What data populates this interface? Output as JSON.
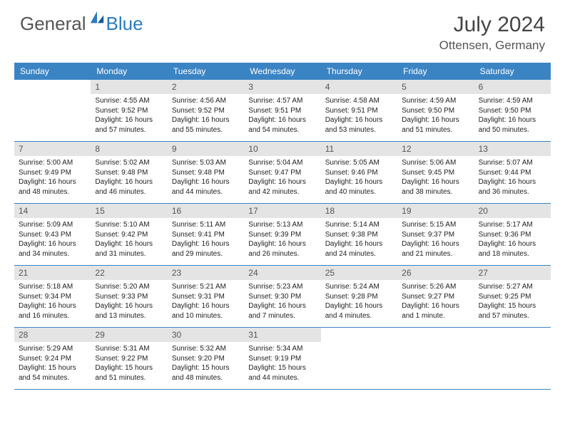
{
  "brand": {
    "part1": "General",
    "part2": "Blue"
  },
  "title": "July 2024",
  "location": "Ottensen, Germany",
  "colors": {
    "header_bg": "#3b84c4",
    "daynum_bg": "#e4e4e4",
    "text_dark": "#222222",
    "text_mid": "#555555",
    "brand_blue": "#2b7bbf"
  },
  "dayNames": [
    "Sunday",
    "Monday",
    "Tuesday",
    "Wednesday",
    "Thursday",
    "Friday",
    "Saturday"
  ],
  "weeks": [
    [
      null,
      {
        "n": "1",
        "sr": "4:55 AM",
        "ss": "9:52 PM",
        "dl": "16 hours and 57 minutes."
      },
      {
        "n": "2",
        "sr": "4:56 AM",
        "ss": "9:52 PM",
        "dl": "16 hours and 55 minutes."
      },
      {
        "n": "3",
        "sr": "4:57 AM",
        "ss": "9:51 PM",
        "dl": "16 hours and 54 minutes."
      },
      {
        "n": "4",
        "sr": "4:58 AM",
        "ss": "9:51 PM",
        "dl": "16 hours and 53 minutes."
      },
      {
        "n": "5",
        "sr": "4:59 AM",
        "ss": "9:50 PM",
        "dl": "16 hours and 51 minutes."
      },
      {
        "n": "6",
        "sr": "4:59 AM",
        "ss": "9:50 PM",
        "dl": "16 hours and 50 minutes."
      }
    ],
    [
      {
        "n": "7",
        "sr": "5:00 AM",
        "ss": "9:49 PM",
        "dl": "16 hours and 48 minutes."
      },
      {
        "n": "8",
        "sr": "5:02 AM",
        "ss": "9:48 PM",
        "dl": "16 hours and 46 minutes."
      },
      {
        "n": "9",
        "sr": "5:03 AM",
        "ss": "9:48 PM",
        "dl": "16 hours and 44 minutes."
      },
      {
        "n": "10",
        "sr": "5:04 AM",
        "ss": "9:47 PM",
        "dl": "16 hours and 42 minutes."
      },
      {
        "n": "11",
        "sr": "5:05 AM",
        "ss": "9:46 PM",
        "dl": "16 hours and 40 minutes."
      },
      {
        "n": "12",
        "sr": "5:06 AM",
        "ss": "9:45 PM",
        "dl": "16 hours and 38 minutes."
      },
      {
        "n": "13",
        "sr": "5:07 AM",
        "ss": "9:44 PM",
        "dl": "16 hours and 36 minutes."
      }
    ],
    [
      {
        "n": "14",
        "sr": "5:09 AM",
        "ss": "9:43 PM",
        "dl": "16 hours and 34 minutes."
      },
      {
        "n": "15",
        "sr": "5:10 AM",
        "ss": "9:42 PM",
        "dl": "16 hours and 31 minutes."
      },
      {
        "n": "16",
        "sr": "5:11 AM",
        "ss": "9:41 PM",
        "dl": "16 hours and 29 minutes."
      },
      {
        "n": "17",
        "sr": "5:13 AM",
        "ss": "9:39 PM",
        "dl": "16 hours and 26 minutes."
      },
      {
        "n": "18",
        "sr": "5:14 AM",
        "ss": "9:38 PM",
        "dl": "16 hours and 24 minutes."
      },
      {
        "n": "19",
        "sr": "5:15 AM",
        "ss": "9:37 PM",
        "dl": "16 hours and 21 minutes."
      },
      {
        "n": "20",
        "sr": "5:17 AM",
        "ss": "9:36 PM",
        "dl": "16 hours and 18 minutes."
      }
    ],
    [
      {
        "n": "21",
        "sr": "5:18 AM",
        "ss": "9:34 PM",
        "dl": "16 hours and 16 minutes."
      },
      {
        "n": "22",
        "sr": "5:20 AM",
        "ss": "9:33 PM",
        "dl": "16 hours and 13 minutes."
      },
      {
        "n": "23",
        "sr": "5:21 AM",
        "ss": "9:31 PM",
        "dl": "16 hours and 10 minutes."
      },
      {
        "n": "24",
        "sr": "5:23 AM",
        "ss": "9:30 PM",
        "dl": "16 hours and 7 minutes."
      },
      {
        "n": "25",
        "sr": "5:24 AM",
        "ss": "9:28 PM",
        "dl": "16 hours and 4 minutes."
      },
      {
        "n": "26",
        "sr": "5:26 AM",
        "ss": "9:27 PM",
        "dl": "16 hours and 1 minute."
      },
      {
        "n": "27",
        "sr": "5:27 AM",
        "ss": "9:25 PM",
        "dl": "15 hours and 57 minutes."
      }
    ],
    [
      {
        "n": "28",
        "sr": "5:29 AM",
        "ss": "9:24 PM",
        "dl": "15 hours and 54 minutes."
      },
      {
        "n": "29",
        "sr": "5:31 AM",
        "ss": "9:22 PM",
        "dl": "15 hours and 51 minutes."
      },
      {
        "n": "30",
        "sr": "5:32 AM",
        "ss": "9:20 PM",
        "dl": "15 hours and 48 minutes."
      },
      {
        "n": "31",
        "sr": "5:34 AM",
        "ss": "9:19 PM",
        "dl": "15 hours and 44 minutes."
      },
      null,
      null,
      null
    ]
  ],
  "labels": {
    "sunrise": "Sunrise:",
    "sunset": "Sunset:",
    "daylight": "Daylight:"
  }
}
